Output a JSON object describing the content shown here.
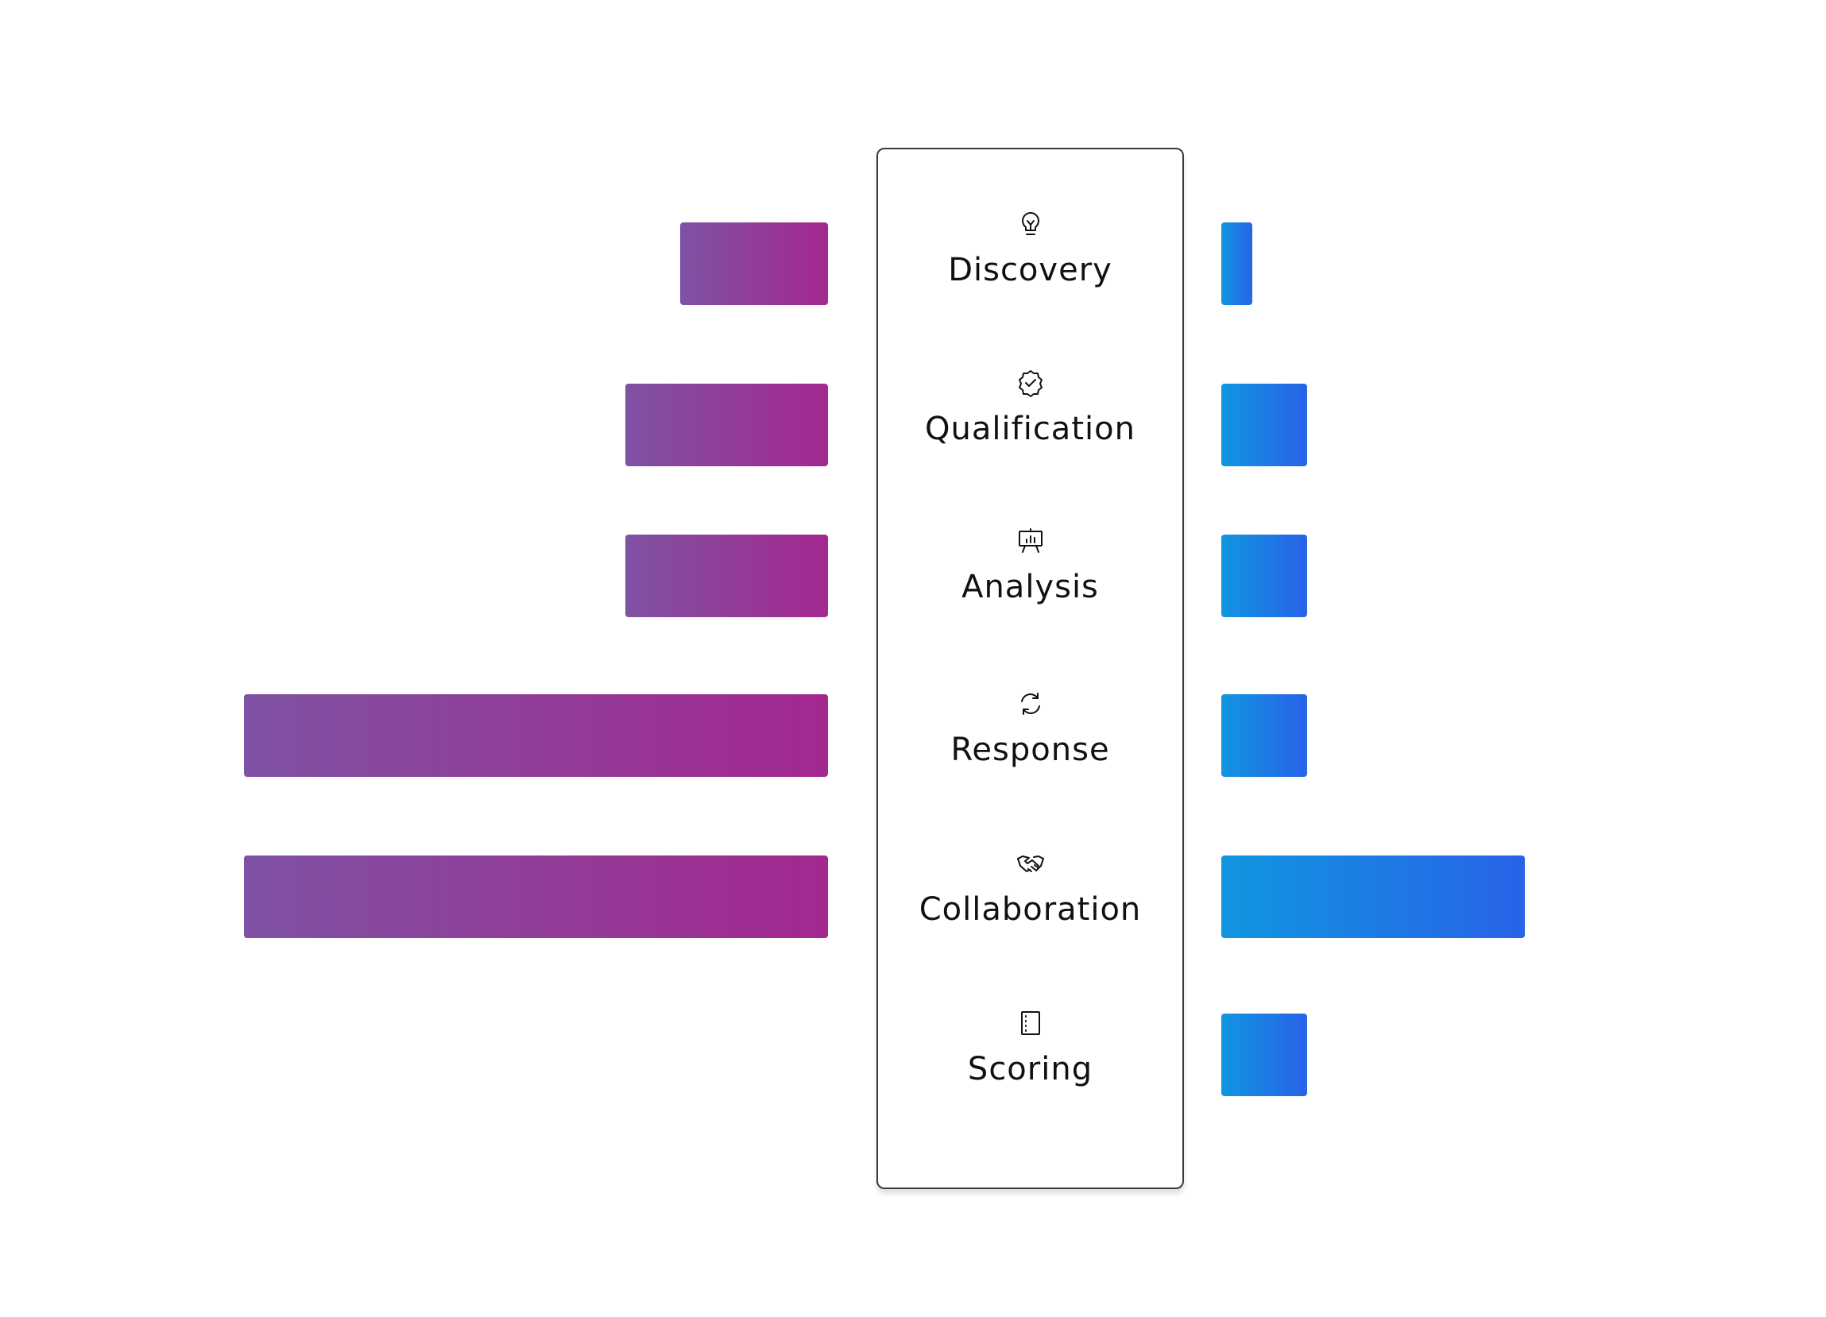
{
  "chart_data": {
    "type": "bar",
    "categories": [
      "Discovery",
      "Qualification",
      "Analysis",
      "Response",
      "Collaboration",
      "Scoring"
    ],
    "icons": [
      "lightbulb-icon",
      "verified-badge-icon",
      "presentation-board-icon",
      "refresh-icon",
      "handshake-icon",
      "document-icon"
    ],
    "series": [
      {
        "side": "left",
        "values": [
          19,
          26,
          26,
          75,
          75,
          0
        ],
        "color_start": "#7f52a3",
        "color_end": "#a3288f"
      },
      {
        "side": "right",
        "values": [
          4,
          11,
          11,
          11,
          39,
          11
        ],
        "color_start": "#1196e0",
        "color_end": "#2863e8"
      }
    ],
    "xlim": [
      0,
      75
    ],
    "title": "",
    "xlabel": "",
    "ylabel": "",
    "grid": false,
    "legend": "none"
  }
}
